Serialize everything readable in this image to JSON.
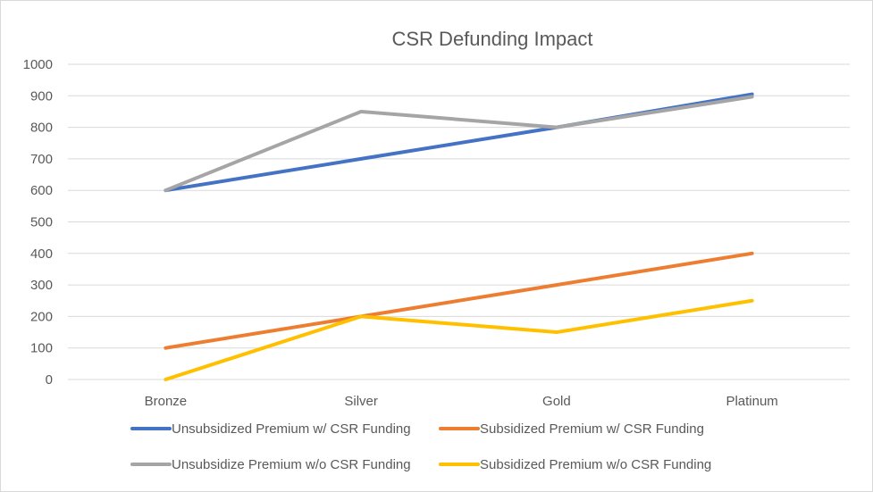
{
  "chart_data": {
    "type": "line",
    "title": "CSR Defunding Impact",
    "categories": [
      "Bronze",
      "Silver",
      "Gold",
      "Platinum"
    ],
    "ylim": [
      0,
      1000
    ],
    "yticks": [
      0,
      100,
      200,
      300,
      400,
      500,
      600,
      700,
      800,
      900,
      1000
    ],
    "grid": "horizontal",
    "legend": "bottom",
    "series": [
      {
        "name": "Unsubsidized Premium w/ CSR Funding",
        "values": [
          600,
          700,
          800,
          905
        ],
        "color": "#4472C4"
      },
      {
        "name": "Subsidized Premium w/ CSR Funding",
        "values": [
          100,
          200,
          300,
          400
        ],
        "color": "#ED7D31"
      },
      {
        "name": "Unsubsidize Premium w/o CSR Funding",
        "values": [
          600,
          850,
          800,
          897
        ],
        "color": "#A5A5A5"
      },
      {
        "name": "Subsidized Premium w/o CSR Funding",
        "values": [
          0,
          200,
          150,
          250
        ],
        "color": "#FFC000"
      }
    ]
  }
}
